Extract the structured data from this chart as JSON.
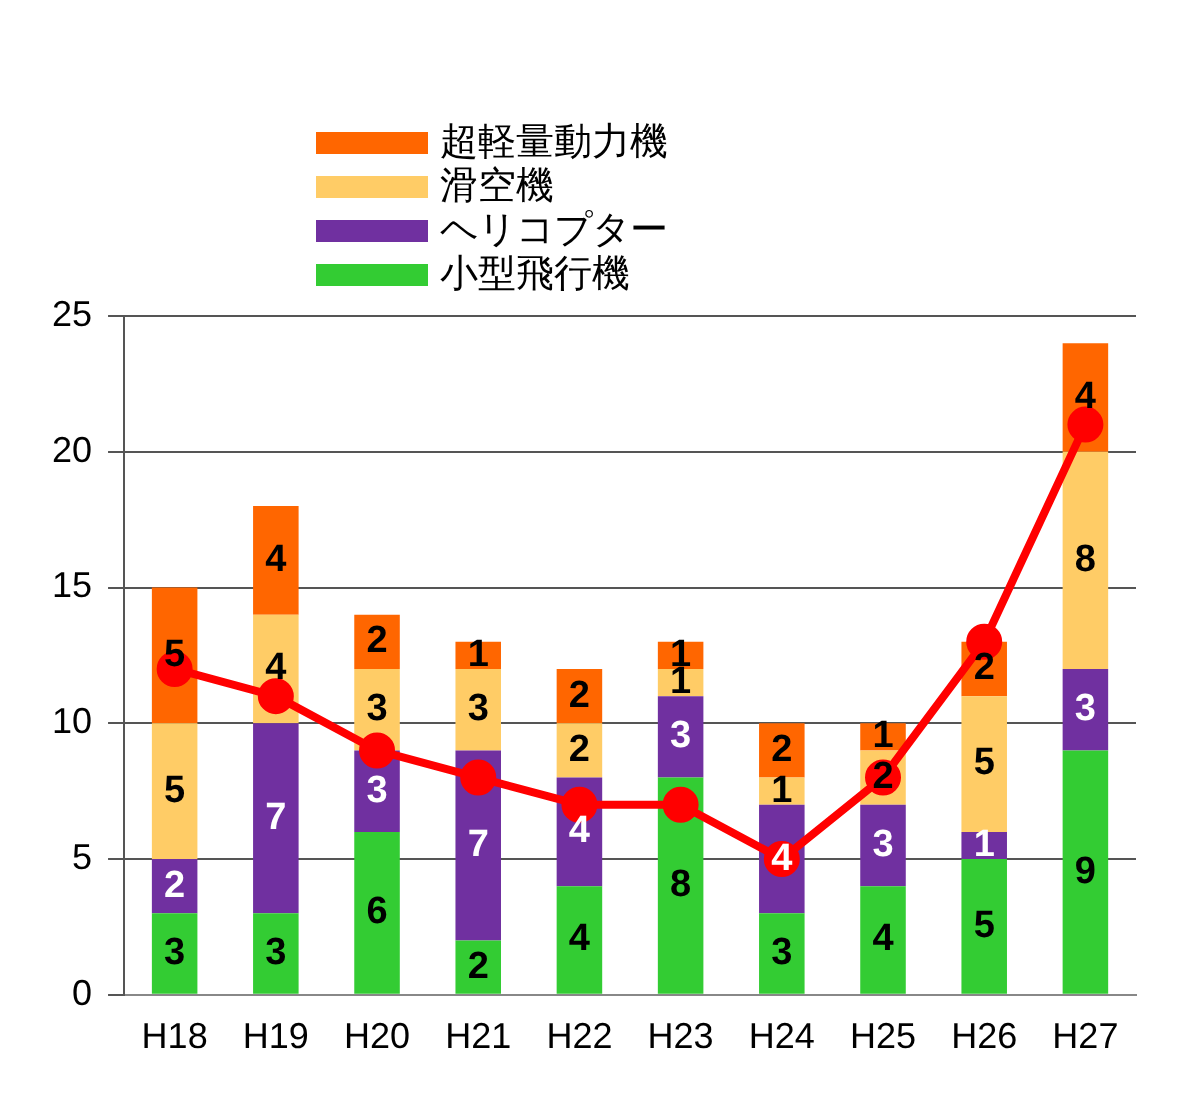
{
  "chart_data": {
    "type": "bar",
    "stacked": true,
    "categories": [
      "H18",
      "H19",
      "H20",
      "H21",
      "H22",
      "H23",
      "H24",
      "H25",
      "H26",
      "H27"
    ],
    "series": [
      {
        "name": "小型飛行機",
        "color": "#33cc33",
        "values": [
          3,
          3,
          6,
          2,
          4,
          8,
          3,
          4,
          5,
          9
        ],
        "value_labels": [
          "3",
          "3",
          "6",
          "2",
          "4",
          "8",
          "3",
          "4",
          "5",
          "9"
        ]
      },
      {
        "name": "ヘリコプター",
        "color": "#7030a0",
        "values": [
          2,
          7,
          3,
          7,
          4,
          3,
          4,
          3,
          1,
          3
        ],
        "value_labels": [
          "2",
          "7",
          "3",
          "7",
          "4",
          "3",
          "4",
          "3",
          "1",
          "3"
        ]
      },
      {
        "name": "滑空機",
        "color": "#ffcc66",
        "values": [
          5,
          4,
          3,
          3,
          2,
          1,
          1,
          2,
          5,
          8
        ],
        "value_labels": [
          "5",
          "4",
          "3",
          "3",
          "2",
          "1",
          "1",
          "2",
          "5",
          "8"
        ]
      },
      {
        "name": "超軽量動力機",
        "color": "#ff6600",
        "values": [
          5,
          4,
          2,
          1,
          2,
          1,
          2,
          1,
          2,
          4
        ],
        "value_labels": [
          "5",
          "4",
          "2",
          "1",
          "2",
          "1",
          "2",
          "1",
          "2",
          "4"
        ]
      },
      {
        "type": "line",
        "color": "#ff0000",
        "values": [
          12,
          11,
          9,
          8,
          7,
          7,
          5,
          8,
          13,
          21
        ]
      }
    ],
    "ylim": [
      0,
      25
    ],
    "yticks": [
      0,
      5,
      10,
      15,
      20,
      25
    ],
    "grid": "y",
    "legend": "top",
    "marker": "circle"
  }
}
